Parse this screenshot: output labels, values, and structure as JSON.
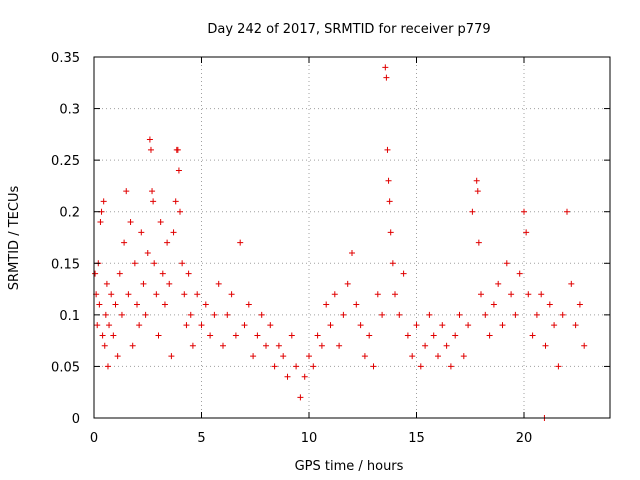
{
  "chart_data": {
    "type": "scatter",
    "title": "Day 242 of 2017, SRMTID for receiver p779",
    "xlabel": "GPS time / hours",
    "ylabel": "SRMTID / TECUs",
    "xlim": [
      0,
      24
    ],
    "ylim": [
      0,
      0.35
    ],
    "xticks": [
      0,
      5,
      10,
      15,
      20
    ],
    "xtick_labels": [
      "0",
      "5",
      "10",
      "15",
      "20"
    ],
    "yticks": [
      0,
      0.05,
      0.1,
      0.15,
      0.2,
      0.25,
      0.3,
      0.35
    ],
    "ytick_labels": [
      "0",
      "0.05",
      "0.1",
      "0.15",
      "0.2",
      "0.25",
      "0.3",
      "0.35"
    ],
    "grid": true,
    "marker": "plus",
    "color": "#e00000",
    "series": [
      {
        "name": "SRMTID",
        "points": [
          [
            0.05,
            0.14
          ],
          [
            0.1,
            0.12
          ],
          [
            0.15,
            0.09
          ],
          [
            0.2,
            0.15
          ],
          [
            0.25,
            0.11
          ],
          [
            0.3,
            0.19
          ],
          [
            0.35,
            0.2
          ],
          [
            0.4,
            0.08
          ],
          [
            0.45,
            0.21
          ],
          [
            0.5,
            0.07
          ],
          [
            0.55,
            0.1
          ],
          [
            0.6,
            0.13
          ],
          [
            0.65,
            0.05
          ],
          [
            0.7,
            0.09
          ],
          [
            0.8,
            0.12
          ],
          [
            0.9,
            0.08
          ],
          [
            1.0,
            0.11
          ],
          [
            1.1,
            0.06
          ],
          [
            1.2,
            0.14
          ],
          [
            1.3,
            0.1
          ],
          [
            1.4,
            0.17
          ],
          [
            1.5,
            0.22
          ],
          [
            1.6,
            0.12
          ],
          [
            1.7,
            0.19
          ],
          [
            1.8,
            0.07
          ],
          [
            1.9,
            0.15
          ],
          [
            2.0,
            0.11
          ],
          [
            2.1,
            0.09
          ],
          [
            2.2,
            0.18
          ],
          [
            2.3,
            0.13
          ],
          [
            2.4,
            0.1
          ],
          [
            2.5,
            0.16
          ],
          [
            2.6,
            0.27
          ],
          [
            2.65,
            0.26
          ],
          [
            2.7,
            0.22
          ],
          [
            2.75,
            0.21
          ],
          [
            2.8,
            0.15
          ],
          [
            2.9,
            0.12
          ],
          [
            3.0,
            0.08
          ],
          [
            3.1,
            0.19
          ],
          [
            3.2,
            0.14
          ],
          [
            3.3,
            0.11
          ],
          [
            3.4,
            0.17
          ],
          [
            3.5,
            0.13
          ],
          [
            3.6,
            0.06
          ],
          [
            3.7,
            0.18
          ],
          [
            3.8,
            0.21
          ],
          [
            3.85,
            0.26
          ],
          [
            3.9,
            0.26
          ],
          [
            3.95,
            0.24
          ],
          [
            4.0,
            0.2
          ],
          [
            4.1,
            0.15
          ],
          [
            4.2,
            0.12
          ],
          [
            4.3,
            0.09
          ],
          [
            4.4,
            0.14
          ],
          [
            4.5,
            0.1
          ],
          [
            4.6,
            0.07
          ],
          [
            4.8,
            0.12
          ],
          [
            5.0,
            0.09
          ],
          [
            5.2,
            0.11
          ],
          [
            5.4,
            0.08
          ],
          [
            5.6,
            0.1
          ],
          [
            5.8,
            0.13
          ],
          [
            6.0,
            0.07
          ],
          [
            6.2,
            0.1
          ],
          [
            6.4,
            0.12
          ],
          [
            6.6,
            0.08
          ],
          [
            6.8,
            0.17
          ],
          [
            7.0,
            0.09
          ],
          [
            7.2,
            0.11
          ],
          [
            7.4,
            0.06
          ],
          [
            7.6,
            0.08
          ],
          [
            7.8,
            0.1
          ],
          [
            8.0,
            0.07
          ],
          [
            8.2,
            0.09
          ],
          [
            8.4,
            0.05
          ],
          [
            8.6,
            0.07
          ],
          [
            8.8,
            0.06
          ],
          [
            9.0,
            0.04
          ],
          [
            9.2,
            0.08
          ],
          [
            9.4,
            0.05
          ],
          [
            9.6,
            0.02
          ],
          [
            9.8,
            0.04
          ],
          [
            10.0,
            0.06
          ],
          [
            10.2,
            0.05
          ],
          [
            10.4,
            0.08
          ],
          [
            10.6,
            0.07
          ],
          [
            10.8,
            0.11
          ],
          [
            11.0,
            0.09
          ],
          [
            11.2,
            0.12
          ],
          [
            11.4,
            0.07
          ],
          [
            11.6,
            0.1
          ],
          [
            11.8,
            0.13
          ],
          [
            12.0,
            0.16
          ],
          [
            12.2,
            0.11
          ],
          [
            12.4,
            0.09
          ],
          [
            12.6,
            0.06
          ],
          [
            12.8,
            0.08
          ],
          [
            13.0,
            0.05
          ],
          [
            13.2,
            0.12
          ],
          [
            13.4,
            0.1
          ],
          [
            13.55,
            0.34
          ],
          [
            13.6,
            0.33
          ],
          [
            13.65,
            0.26
          ],
          [
            13.7,
            0.23
          ],
          [
            13.75,
            0.21
          ],
          [
            13.8,
            0.18
          ],
          [
            13.9,
            0.15
          ],
          [
            14.0,
            0.12
          ],
          [
            14.2,
            0.1
          ],
          [
            14.4,
            0.14
          ],
          [
            14.6,
            0.08
          ],
          [
            14.8,
            0.06
          ],
          [
            15.0,
            0.09
          ],
          [
            15.2,
            0.05
          ],
          [
            15.4,
            0.07
          ],
          [
            15.6,
            0.1
          ],
          [
            15.8,
            0.08
          ],
          [
            16.0,
            0.06
          ],
          [
            16.2,
            0.09
          ],
          [
            16.4,
            0.07
          ],
          [
            16.6,
            0.05
          ],
          [
            16.8,
            0.08
          ],
          [
            17.0,
            0.1
          ],
          [
            17.2,
            0.06
          ],
          [
            17.4,
            0.09
          ],
          [
            17.6,
            0.2
          ],
          [
            17.8,
            0.23
          ],
          [
            17.85,
            0.22
          ],
          [
            17.9,
            0.17
          ],
          [
            18.0,
            0.12
          ],
          [
            18.2,
            0.1
          ],
          [
            18.4,
            0.08
          ],
          [
            18.6,
            0.11
          ],
          [
            18.8,
            0.13
          ],
          [
            19.0,
            0.09
          ],
          [
            19.2,
            0.15
          ],
          [
            19.4,
            0.12
          ],
          [
            19.6,
            0.1
          ],
          [
            19.8,
            0.14
          ],
          [
            20.0,
            0.2
          ],
          [
            20.1,
            0.18
          ],
          [
            20.2,
            0.12
          ],
          [
            20.4,
            0.08
          ],
          [
            20.6,
            0.1
          ],
          [
            20.8,
            0.12
          ],
          [
            21.0,
            0.07
          ],
          [
            21.2,
            0.11
          ],
          [
            21.4,
            0.09
          ],
          [
            21.6,
            0.05
          ],
          [
            21.8,
            0.1
          ],
          [
            22.0,
            0.2
          ],
          [
            22.2,
            0.13
          ],
          [
            22.4,
            0.09
          ],
          [
            22.6,
            0.11
          ],
          [
            22.8,
            0.07
          ],
          [
            20.95,
            0.0
          ]
        ]
      }
    ]
  }
}
